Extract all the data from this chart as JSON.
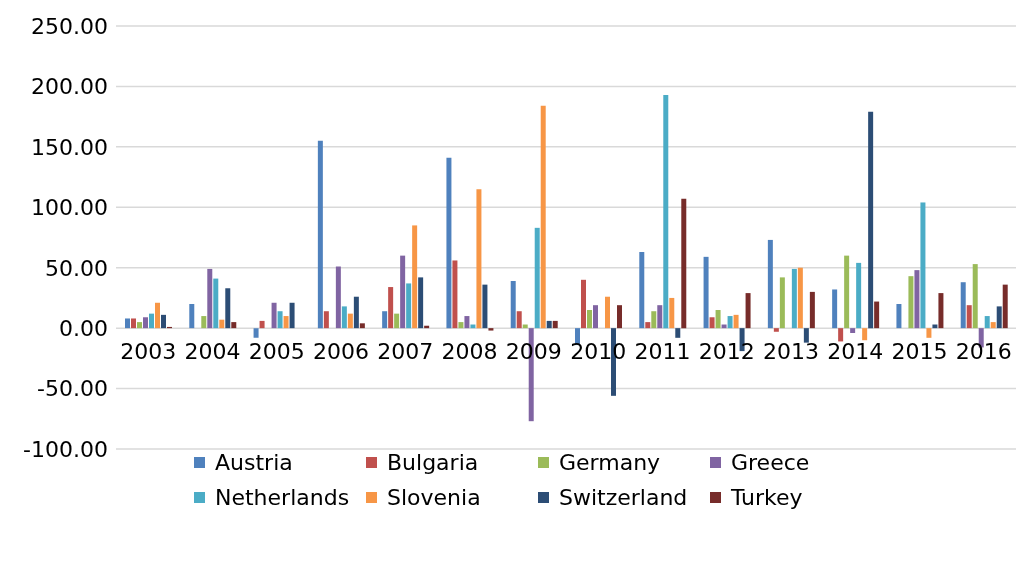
{
  "chart_data": {
    "type": "bar",
    "categories": [
      "2003",
      "2004",
      "2005",
      "2006",
      "2007",
      "2008",
      "2009",
      "2010",
      "2011",
      "2012",
      "2013",
      "2014",
      "2015",
      "2016"
    ],
    "series": [
      {
        "name": "Austria",
        "color": "#4f81bd",
        "values": [
          8,
          20,
          -8,
          155,
          14,
          141,
          39,
          -14,
          63,
          59,
          73,
          32,
          20,
          38
        ]
      },
      {
        "name": "Bulgaria",
        "color": "#c0504d",
        "values": [
          8,
          0,
          6,
          14,
          34,
          56,
          14,
          40,
          5,
          9,
          -3,
          -11,
          0,
          19
        ]
      },
      {
        "name": "Germany",
        "color": "#9bbb59",
        "values": [
          5,
          10,
          0,
          0,
          12,
          5,
          3,
          15,
          14,
          15,
          42,
          60,
          43,
          53
        ]
      },
      {
        "name": "Greece",
        "color": "#8064a2",
        "values": [
          9,
          49,
          21,
          51,
          60,
          10,
          -77,
          19,
          19,
          3,
          0,
          -4,
          48,
          -16
        ]
      },
      {
        "name": "Netherlands",
        "color": "#4bacc6",
        "values": [
          12,
          41,
          14,
          18,
          37,
          3,
          83,
          0,
          193,
          10,
          49,
          54,
          104,
          10
        ]
      },
      {
        "name": "Slovenia",
        "color": "#f79646",
        "values": [
          21,
          7,
          10,
          12,
          85,
          115,
          184,
          26,
          25,
          11,
          50,
          -10,
          -8,
          5
        ]
      },
      {
        "name": "Switzerland",
        "color": "#2c4d75",
        "values": [
          11,
          33,
          21,
          26,
          42,
          36,
          6,
          -56,
          -8,
          -19,
          -12,
          179,
          3,
          18
        ]
      },
      {
        "name": "Turkey",
        "color": "#772c2a",
        "values": [
          1,
          5,
          0,
          4,
          2,
          -2,
          6,
          19,
          107,
          29,
          30,
          22,
          29,
          36
        ]
      }
    ],
    "ylim": [
      -100,
      250
    ],
    "yticks": [
      {
        "value": -100,
        "label": "-100.00"
      },
      {
        "value": -50,
        "label": "-50.00"
      },
      {
        "value": 0,
        "label": "0.00"
      },
      {
        "value": 50,
        "label": "50.00"
      },
      {
        "value": 100,
        "label": "100.00"
      },
      {
        "value": 150,
        "label": "150.00"
      },
      {
        "value": 200,
        "label": "200.00"
      },
      {
        "value": 250,
        "label": "250.00"
      }
    ],
    "grid": "y",
    "legend": "bottom"
  }
}
